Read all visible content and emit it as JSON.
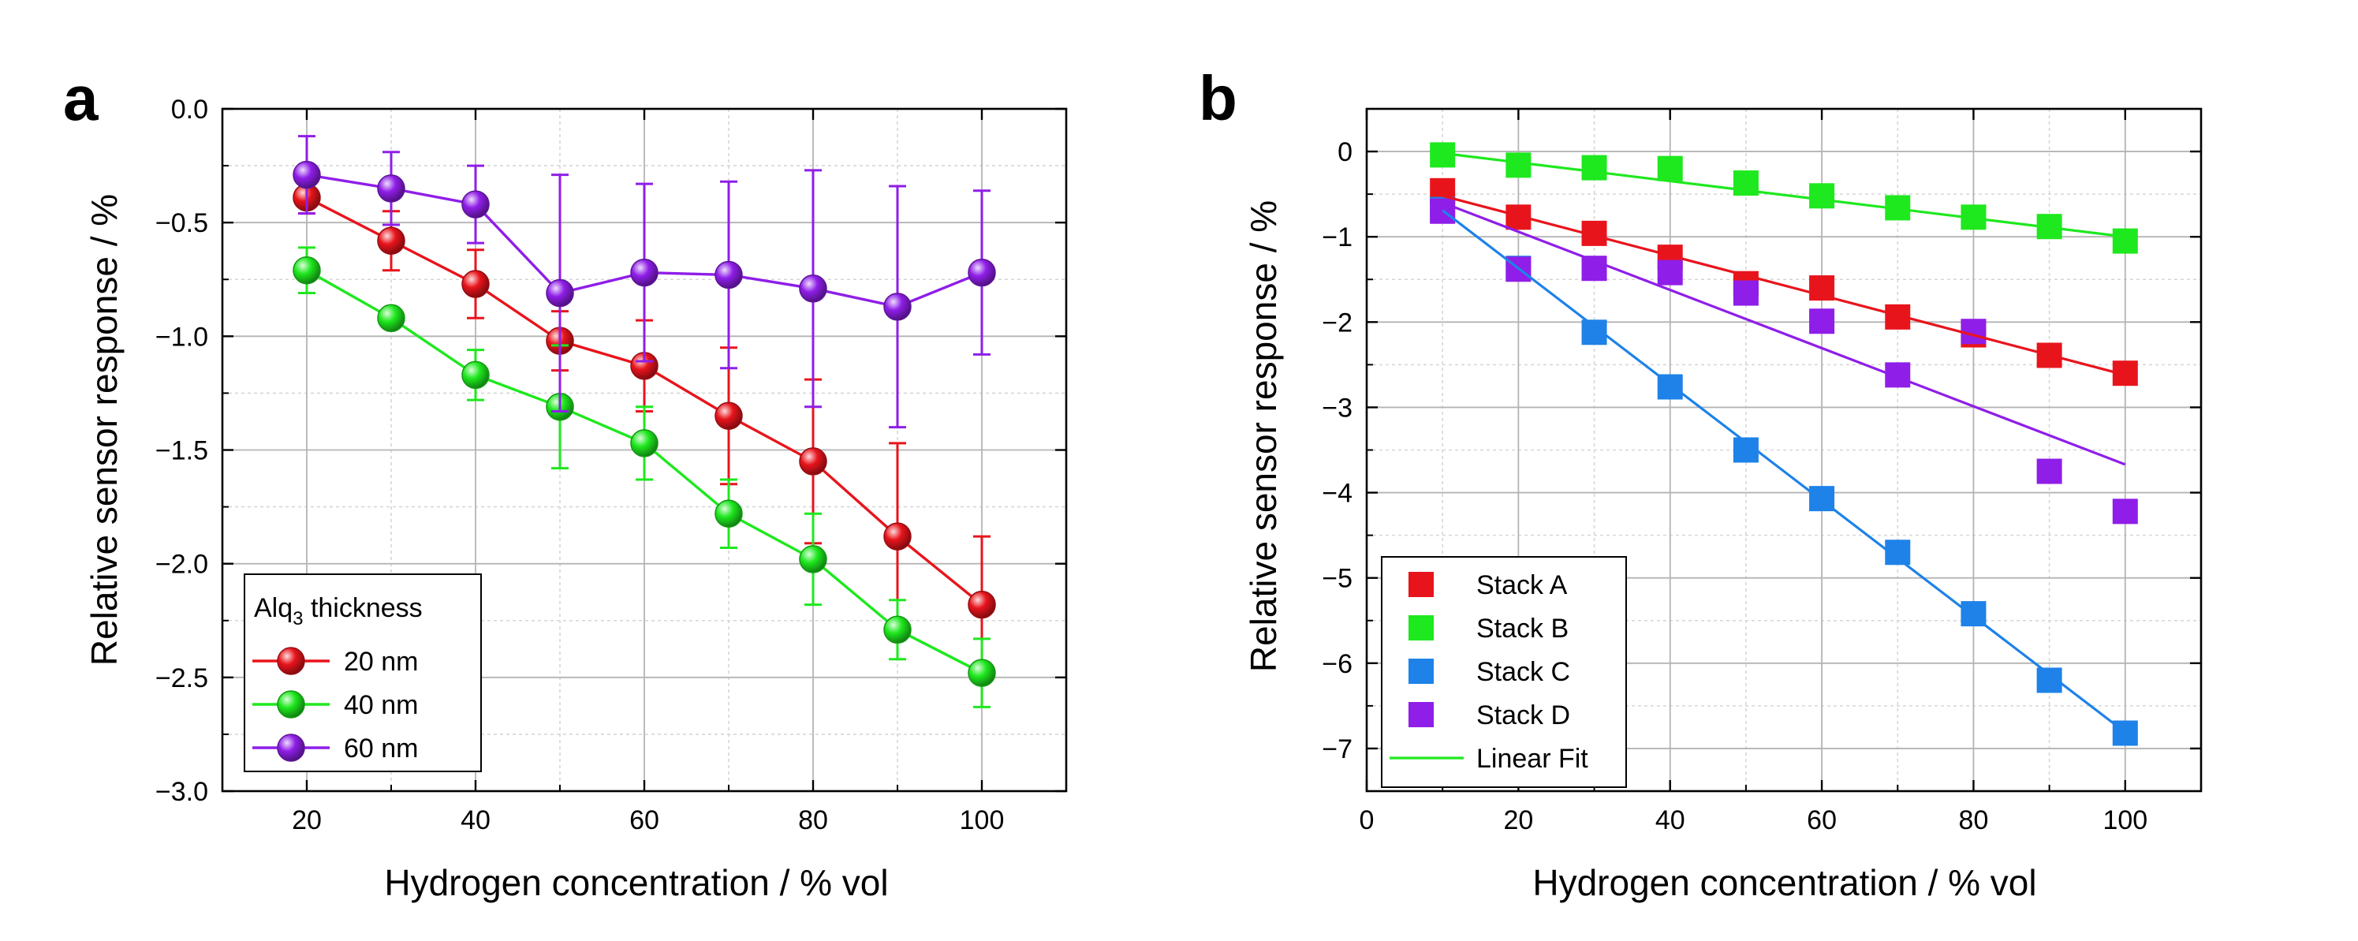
{
  "chart_data": [
    {
      "panel": "a",
      "type": "line",
      "xlabel": "Hydrogen concentration / % vol",
      "ylabel": "Relative sensor response / %",
      "xlim": [
        10,
        110
      ],
      "ylim": [
        -3.0,
        0.0
      ],
      "xticks": [
        "20",
        "40",
        "60",
        "80",
        "100"
      ],
      "yticks": [
        "0.0",
        "−0.5",
        "−1.0",
        "−1.5",
        "−2.0",
        "−2.5",
        "−3.0"
      ],
      "grid": true,
      "legend": {
        "placement": "bottom-left",
        "title": "Alq",
        "title_sub": "3",
        "title_suffix": " thickness"
      },
      "x": [
        20,
        30,
        40,
        50,
        60,
        70,
        80,
        90,
        100
      ],
      "series": [
        {
          "name": "20 nm",
          "color": "#e8141c",
          "marker": "sphere",
          "values": [
            -0.39,
            -0.58,
            -0.77,
            -1.02,
            -1.13,
            -1.35,
            -1.55,
            -1.88,
            -2.18
          ],
          "errors": [
            0.07,
            0.13,
            0.15,
            0.13,
            0.2,
            0.3,
            0.36,
            0.41,
            0.3
          ]
        },
        {
          "name": "40 nm",
          "color": "#1ee81e",
          "marker": "sphere",
          "values": [
            -0.71,
            -0.92,
            -1.17,
            -1.31,
            -1.47,
            -1.78,
            -1.98,
            -2.29,
            -2.48
          ],
          "errors": [
            0.1,
            0.03,
            0.11,
            0.27,
            0.16,
            0.15,
            0.2,
            0.13,
            0.15
          ]
        },
        {
          "name": "60 nm",
          "color": "#8f1ee8",
          "marker": "sphere",
          "values": [
            -0.29,
            -0.35,
            -0.42,
            -0.81,
            -0.72,
            -0.73,
            -0.79,
            -0.87,
            -0.72
          ],
          "errors": [
            0.17,
            0.16,
            0.17,
            0.52,
            0.39,
            0.41,
            0.52,
            0.53,
            0.36
          ]
        }
      ]
    },
    {
      "panel": "b",
      "type": "scatter",
      "xlabel": "Hydrogen concentration / % vol",
      "ylabel": "Relative sensor response / %",
      "xlim": [
        0,
        110
      ],
      "ylim": [
        -7.5,
        0.5
      ],
      "xticks": [
        "0",
        "20",
        "40",
        "60",
        "80",
        "100"
      ],
      "yticks": [
        "0",
        "−1",
        "−2",
        "−3",
        "−4",
        "−5",
        "−6",
        "−7"
      ],
      "grid": true,
      "legend": {
        "placement": "bottom-left",
        "fit_label": "Linear Fit"
      },
      "x": [
        10,
        20,
        30,
        40,
        50,
        60,
        70,
        80,
        90,
        100
      ],
      "series": [
        {
          "name": "Stack A",
          "color": "#e8141c",
          "values": [
            -0.46,
            -0.77,
            -0.96,
            -1.24,
            -1.55,
            -1.6,
            -1.94,
            -2.15,
            -2.39,
            -2.6
          ],
          "fit": [
            -0.52,
            -2.62
          ]
        },
        {
          "name": "Stack B",
          "color": "#1ee81e",
          "values": [
            -0.04,
            -0.16,
            -0.19,
            -0.2,
            -0.37,
            -0.52,
            -0.66,
            -0.77,
            -0.88,
            -1.05
          ],
          "fit": [
            -0.02,
            -1.0
          ]
        },
        {
          "name": "Stack C",
          "color": "#1e82e8",
          "values": [
            -0.68,
            -1.37,
            -2.12,
            -2.76,
            -3.5,
            -4.07,
            -4.7,
            -5.42,
            -6.2,
            -6.82
          ],
          "fit": [
            -0.69,
            -6.81
          ]
        },
        {
          "name": "Stack D",
          "color": "#8f1ee8",
          "values": [
            -0.7,
            -1.38,
            -1.37,
            -1.42,
            -1.66,
            -1.99,
            -2.62,
            -2.11,
            -3.75,
            -4.22
          ],
          "fit": [
            -0.6,
            -3.67
          ]
        }
      ]
    }
  ]
}
